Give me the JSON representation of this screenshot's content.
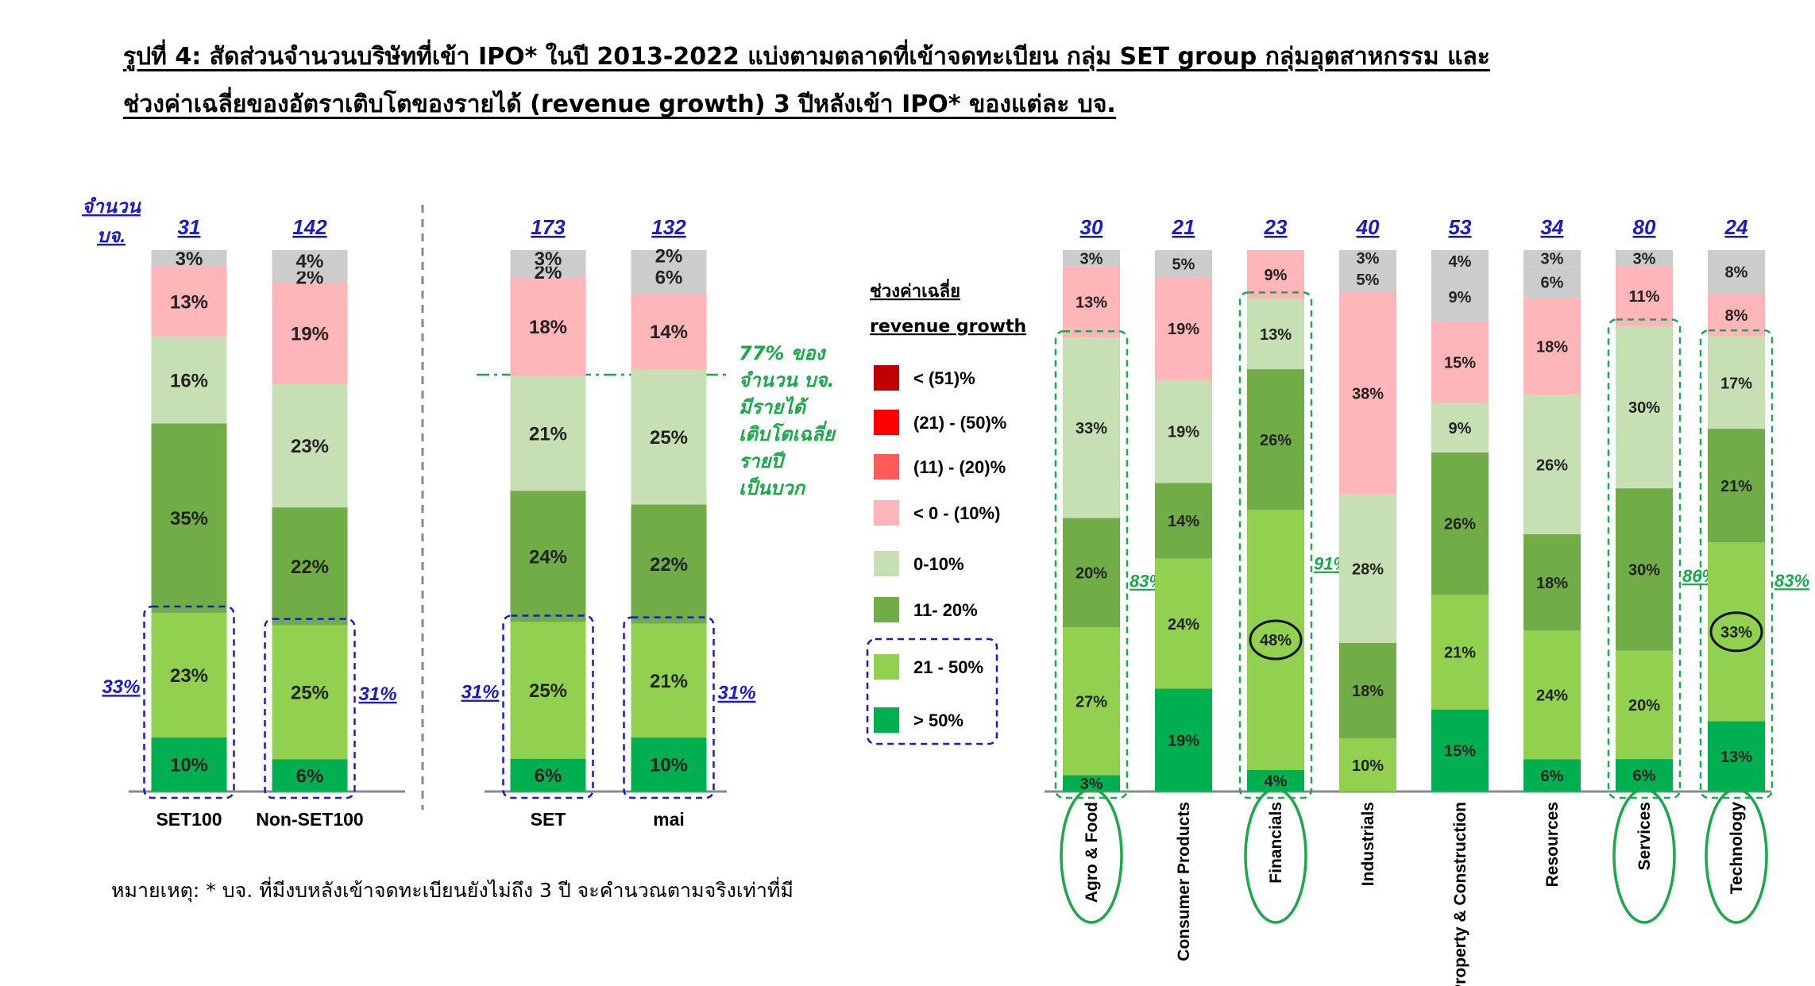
{
  "title_lines": [
    "รูปที่ 4: สัดส่วนจำนวนบริษัทที่เข้า IPO* ในปี 2013-2022 แบ่งตามตลาดที่เข้าจดทะเบียน กลุ่ม SET group กลุ่มอุตสาหกรรม และ",
    "ช่วงค่าเฉลี่ยของอัตราเติบโตของรายได้ (revenue growth) 3 ปีหลังเข้า IPO* ของแต่ละ บจ."
  ],
  "note": "หมายเหตุ: * บจ. ที่มีงบหลังเข้าจดทะเบียนยังไม่ถึง 3 ปี จะคำนวณตามจริงเท่าที่มี",
  "count_axis_label": [
    "จำนวน",
    "บจ."
  ],
  "annotation_77": [
    "77% ของ",
    "จำนวน บจ.",
    "มีรายได้",
    "เติบโตเฉลี่ย",
    "รายปี",
    "เป็นบวก"
  ],
  "legend": {
    "title": [
      "ช่วงค่าเฉลี่ย",
      "revenue growth"
    ],
    "items": [
      {
        "label": "< (51)%",
        "color": "#c00000"
      },
      {
        "label": "(21) - (50)%",
        "color": "#ff0000"
      },
      {
        "label": "(11) - (20)%",
        "color": "#ff5a5a"
      },
      {
        "label": "< 0 - (10%)",
        "color": "#ffb6b9"
      },
      {
        "label": "0-10%",
        "color": "#c6e0b4"
      },
      {
        "label": "11- 20%",
        "color": "#70ad47"
      },
      {
        "label": "21 - 50%",
        "color": "#92d050"
      },
      {
        "label": "> 50%",
        "color": "#00b050"
      }
    ]
  },
  "chart_data": [
    {
      "type": "bar",
      "stacked": true,
      "categories": [
        "SET100",
        "Non-SET100"
      ],
      "counts": [
        "31",
        "142"
      ],
      "series": [
        {
          "name": "> 50%",
          "values": [
            10,
            6
          ],
          "labels": [
            "10%",
            "6%"
          ]
        },
        {
          "name": "21 - 50%",
          "values": [
            23,
            25
          ],
          "labels": [
            "23%",
            "25%"
          ]
        },
        {
          "name": "11- 20%",
          "values": [
            35,
            22
          ],
          "labels": [
            "35%",
            "22%"
          ]
        },
        {
          "name": "0-10%",
          "values": [
            16,
            23
          ],
          "labels": [
            "16%",
            "23%"
          ]
        },
        {
          "name": "< 0 - (10%)",
          "values": [
            13,
            19
          ],
          "labels": [
            "13%",
            "19%"
          ]
        },
        {
          "name": "(11) - (20%)",
          "values": [
            0,
            2
          ],
          "labels": [
            "",
            "2%"
          ]
        },
        {
          "name": "(21) - (50%)",
          "values": [
            3,
            4
          ],
          "labels": [
            "3%",
            "4%"
          ]
        },
        {
          "name": "< (51)%",
          "values": [
            0,
            0
          ],
          "labels": [
            "",
            ""
          ]
        }
      ],
      "group_labels": [
        "33%",
        "31%"
      ]
    },
    {
      "type": "bar",
      "stacked": true,
      "categories": [
        "SET",
        "mai"
      ],
      "counts": [
        "173",
        "132"
      ],
      "series": [
        {
          "name": "> 50%",
          "values": [
            6,
            10
          ],
          "labels": [
            "6%",
            "10%"
          ]
        },
        {
          "name": "21 - 50%",
          "values": [
            25,
            21
          ],
          "labels": [
            "25%",
            "21%"
          ]
        },
        {
          "name": "11- 20%",
          "values": [
            24,
            22
          ],
          "labels": [
            "24%",
            "22%"
          ]
        },
        {
          "name": "0-10%",
          "values": [
            21,
            25
          ],
          "labels": [
            "21%",
            "25%"
          ]
        },
        {
          "name": "< 0 - (10%)",
          "values": [
            18,
            14
          ],
          "labels": [
            "18%",
            "14%"
          ]
        },
        {
          "name": "(11) - (20%)",
          "values": [
            2,
            6
          ],
          "labels": [
            "2%",
            "6%"
          ]
        },
        {
          "name": "(21) - (50%)",
          "values": [
            3,
            2
          ],
          "labels": [
            "3%",
            "2%"
          ]
        },
        {
          "name": "< (51)%",
          "values": [
            0,
            0
          ],
          "labels": [
            "",
            ""
          ]
        }
      ],
      "group_labels": [
        "31%",
        "31%"
      ]
    },
    {
      "type": "bar",
      "stacked": true,
      "categories": [
        "Agro & Food",
        "Consumer Products",
        "Financials",
        "Industrials",
        "Property & Construction",
        "Resources",
        "Services",
        "Technology"
      ],
      "counts": [
        "30",
        "21",
        "23",
        "40",
        "53",
        "34",
        "80",
        "24"
      ],
      "series": [
        {
          "name": "> 50%",
          "values": [
            3,
            19,
            4,
            0,
            15,
            6,
            6,
            13
          ],
          "labels": [
            "3%",
            "19%",
            "4%",
            "",
            "15%",
            "6%",
            "6%",
            "13%"
          ]
        },
        {
          "name": "21 - 50%",
          "values": [
            27,
            24,
            48,
            10,
            21,
            24,
            20,
            33
          ],
          "labels": [
            "27%",
            "24%",
            "48%",
            "10%",
            "21%",
            "24%",
            "20%",
            "33%"
          ]
        },
        {
          "name": "11- 20%",
          "values": [
            20,
            14,
            26,
            18,
            26,
            18,
            30,
            21
          ],
          "labels": [
            "20%",
            "14%",
            "26%",
            "18%",
            "26%",
            "18%",
            "30%",
            "21%"
          ]
        },
        {
          "name": "0-10%",
          "values": [
            33,
            19,
            13,
            28,
            9,
            26,
            30,
            17
          ],
          "labels": [
            "33%",
            "19%",
            "13%",
            "28%",
            "9%",
            "26%",
            "30%",
            "17%"
          ]
        },
        {
          "name": "< 0 - (10%)",
          "values": [
            13,
            19,
            9,
            38,
            15,
            18,
            11,
            8
          ],
          "labels": [
            "13%",
            "19%",
            "9%",
            "38%",
            "15%",
            "18%",
            "11%",
            "8%"
          ]
        },
        {
          "name": "(11) - (20%)",
          "values": [
            0,
            0,
            0,
            5,
            9,
            6,
            0,
            0
          ],
          "labels": [
            "",
            "",
            "",
            "5%",
            "9%",
            "6%",
            "",
            ""
          ]
        },
        {
          "name": "(21) - (50%)",
          "values": [
            3,
            5,
            0,
            3,
            4,
            3,
            3,
            8
          ],
          "labels": [
            "3%",
            "5%",
            "",
            "3%",
            "4%",
            "3%",
            "3%",
            "8%"
          ]
        },
        {
          "name": "< (51)%",
          "values": [
            0,
            0,
            0,
            0,
            0,
            0,
            0,
            0
          ],
          "labels": [
            "",
            "",
            "",
            "",
            "",
            "",
            "",
            ""
          ]
        }
      ],
      "group_labels": [
        "83%",
        "",
        "91%",
        "",
        "",
        "",
        "86%",
        "83%"
      ],
      "circled_categories": [
        "Agro & Food",
        "Financials",
        "Services",
        "Technology"
      ],
      "circled_values": [
        "48%",
        "33%"
      ]
    }
  ]
}
